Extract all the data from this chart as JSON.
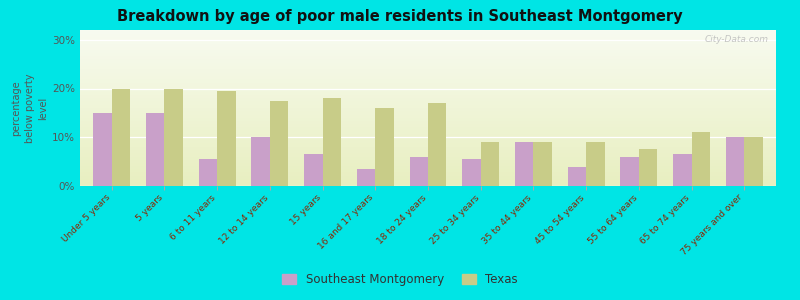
{
  "title": "Breakdown by age of poor male residents in Southeast Montgomery",
  "categories": [
    "Under 5 years",
    "5 years",
    "6 to 11 years",
    "12 to 14 years",
    "15 years",
    "16 and 17 years",
    "18 to 24 years",
    "25 to 34 years",
    "35 to 44 years",
    "45 to 54 years",
    "55 to 64 years",
    "65 to 74 years",
    "75 years and over"
  ],
  "southeast_montgomery": [
    15,
    15,
    5.5,
    10,
    6.5,
    3.5,
    6,
    5.5,
    9,
    4,
    6,
    6.5,
    10
  ],
  "texas": [
    20,
    20,
    19.5,
    17.5,
    18,
    16,
    17,
    9,
    9,
    9,
    7.5,
    11,
    10
  ],
  "bar_color_sm": "#c9a0c9",
  "bar_color_tx": "#c8cc88",
  "background_color": "#00e5e5",
  "plot_bg_top": "#e8efc0",
  "plot_bg_bottom": "#f8fbf0",
  "ylabel": "percentage\nbelow poverty\nlevel",
  "ylim": [
    0,
    32
  ],
  "yticks": [
    0,
    10,
    20,
    30
  ],
  "ytick_labels": [
    "0%",
    "10%",
    "20%",
    "30%"
  ],
  "legend_sm": "Southeast Montgomery",
  "legend_tx": "Texas",
  "watermark": "City-Data.com"
}
